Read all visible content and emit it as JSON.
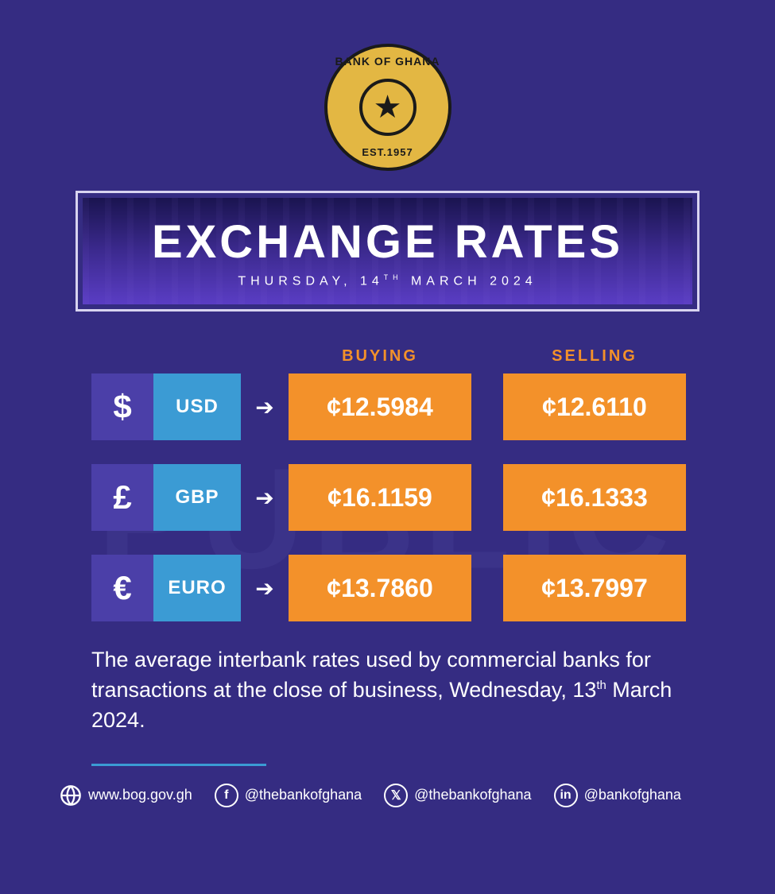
{
  "logo": {
    "top_text": "BANK OF GHANA",
    "bottom_text": "EST.1957"
  },
  "banner": {
    "title": "EXCHANGE RATES",
    "date_html": "THURSDAY, 14<sup>TH</sup> MARCH 2024"
  },
  "headers": {
    "buying": "BUYING",
    "selling": "SELLING"
  },
  "currency_prefix": "¢",
  "rates": [
    {
      "symbol": "$",
      "code": "USD",
      "buying": "12.5984",
      "selling": "12.6110"
    },
    {
      "symbol": "£",
      "code": "GBP",
      "buying": "16.1159",
      "selling": "16.1333"
    },
    {
      "symbol": "€",
      "code": "EURO",
      "buying": "13.7860",
      "selling": "13.7997"
    }
  ],
  "disclaimer_html": "The average interbank rates used by commercial banks for transactions at the close of business, Wednesday, 13<sup>th</sup> March 2024.",
  "watermark": "PUBLIC",
  "footer": {
    "website": "www.bog.gov.gh",
    "facebook": "@thebankofghana",
    "x": "@thebankofghana",
    "linkedin": "@bankofghana"
  },
  "colors": {
    "background": "#352c82",
    "accent_orange": "#f3912a",
    "accent_blue": "#3b9bd4",
    "symbol_box": "#4b3fa8",
    "logo_gold": "#e3b743",
    "text_white": "#ffffff"
  }
}
